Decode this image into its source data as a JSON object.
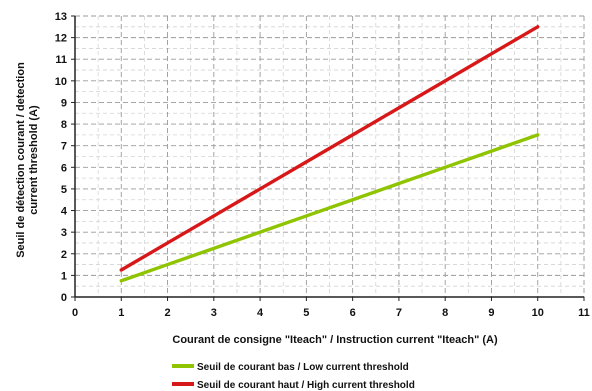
{
  "chart_data": {
    "type": "line",
    "title": "",
    "xlabel": "Courant  de  consigne  \"Iteach\"  /  Instruction  current  \"Iteach\"  (A)",
    "ylabel_line1": "Seuil de détection courant / detection",
    "ylabel_line2": "current threshold (A)",
    "xlim": [
      0,
      11
    ],
    "ylim": [
      0,
      13
    ],
    "x_ticks": [
      0,
      1,
      2,
      3,
      4,
      5,
      6,
      7,
      8,
      9,
      10,
      11
    ],
    "y_ticks": [
      0,
      1,
      2,
      3,
      4,
      5,
      6,
      7,
      8,
      9,
      10,
      11,
      12,
      13
    ],
    "x_tick_labels": [
      "0",
      "1",
      "2",
      "3",
      "4",
      "5",
      "6",
      "7",
      "8",
      "9",
      "10",
      "11"
    ],
    "y_tick_labels": [
      "0",
      "1",
      "2",
      "3",
      "4",
      "5",
      "6",
      "7",
      "8",
      "9",
      "10",
      "11",
      "12",
      "13"
    ],
    "grid": true,
    "legend_position": "bottom",
    "series": [
      {
        "name": "Seuil  de  courant  bas  /  Low  current  threshold",
        "color": "#8fc400",
        "x": [
          1,
          2,
          3,
          4,
          5,
          6,
          7,
          8,
          9,
          10
        ],
        "y": [
          0.75,
          1.5,
          2.25,
          3.0,
          3.75,
          4.5,
          5.25,
          6.0,
          6.75,
          7.5
        ]
      },
      {
        "name": "Seuil  de  courant  haut  /  High  current  threshold",
        "color": "#d81818",
        "x": [
          1,
          2,
          3,
          4,
          5,
          6,
          7,
          8,
          9,
          10
        ],
        "y": [
          1.25,
          2.5,
          3.75,
          5.0,
          6.25,
          7.5,
          8.75,
          10.0,
          11.25,
          12.5
        ]
      }
    ]
  }
}
